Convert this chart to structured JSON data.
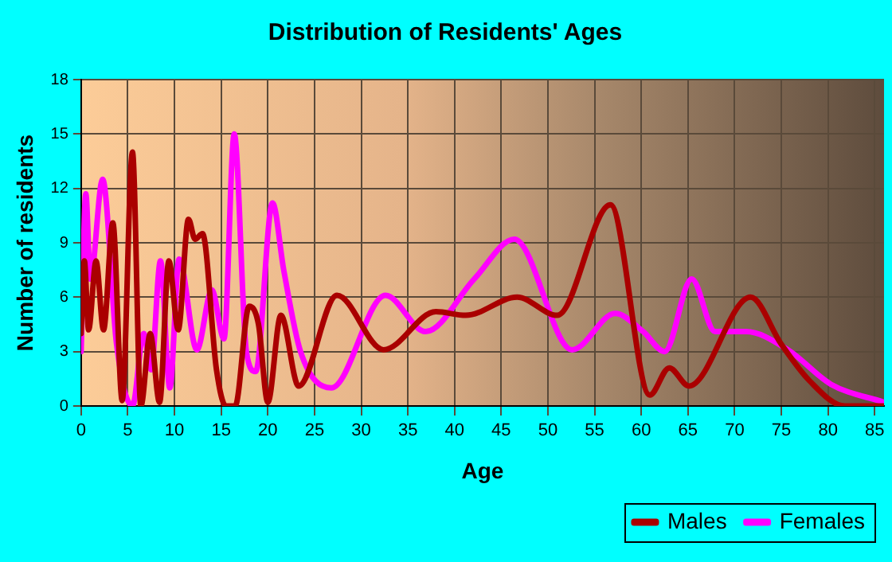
{
  "chart_data": {
    "type": "line",
    "title": "Distribution of Residents' Ages",
    "xlabel": "Age",
    "ylabel": "Number of residents",
    "xlim": [
      0,
      86
    ],
    "xticks": [
      0,
      5,
      10,
      15,
      20,
      25,
      30,
      35,
      40,
      45,
      50,
      55,
      60,
      65,
      70,
      75,
      80,
      85
    ],
    "ylim": [
      0,
      18
    ],
    "yticks": [
      0,
      3,
      6,
      9,
      12,
      15,
      18
    ],
    "grid": true,
    "legend": "bottom right",
    "marker": "none",
    "line_style": "solid",
    "series": [
      {
        "name": "Males",
        "color": "#aa0000",
        "x": [
          0,
          0.35,
          0.8,
          1.6,
          2.4,
          3.4,
          4.4,
          5.5,
          6.4,
          7.4,
          8.4,
          9.4,
          10.4,
          11.5,
          12.2,
          13,
          14.5,
          15.5,
          16.5,
          18,
          19,
          20,
          21.4,
          23.3,
          27.4,
          32.4,
          38,
          41.2,
          46.7,
          51,
          56.7,
          60.9,
          63,
          65.1,
          71.7,
          75,
          78,
          81.8,
          86
        ],
        "values": [
          4,
          8,
          4.2,
          8,
          4.2,
          10.1,
          0.3,
          14,
          0,
          4,
          0.2,
          8,
          4.2,
          10.3,
          9.2,
          9.5,
          2,
          0,
          0,
          5.5,
          4.5,
          0.2,
          5,
          1.1,
          6.1,
          3.1,
          5.2,
          5,
          6,
          5,
          11.1,
          0.6,
          2.1,
          1.1,
          6,
          3.4,
          1.4,
          0,
          0
        ]
      },
      {
        "name": "Females",
        "color": "#ff00ff",
        "x": [
          0,
          0.5,
          1,
          2.3,
          3.8,
          5.5,
          6.7,
          7.5,
          8.5,
          9.5,
          10.5,
          12.4,
          14,
          15.3,
          16.4,
          17.7,
          18.7,
          20.5,
          21.7,
          23.5,
          26.8,
          32.6,
          36.9,
          42.1,
          46.4,
          52.6,
          57.2,
          60.2,
          62.5,
          65.4,
          67.9,
          71.2,
          75.7,
          80.3,
          86
        ],
        "values": [
          3,
          11.7,
          7,
          12.5,
          3.4,
          0,
          4,
          2,
          8,
          1,
          8.1,
          3.1,
          6.4,
          3.7,
          15,
          3,
          1.9,
          11.2,
          7.5,
          3,
          1,
          6.1,
          4.1,
          7,
          9.2,
          3.1,
          5.1,
          4.1,
          3,
          7,
          4.1,
          4.1,
          3.1,
          1.2,
          0.2
        ]
      }
    ]
  }
}
